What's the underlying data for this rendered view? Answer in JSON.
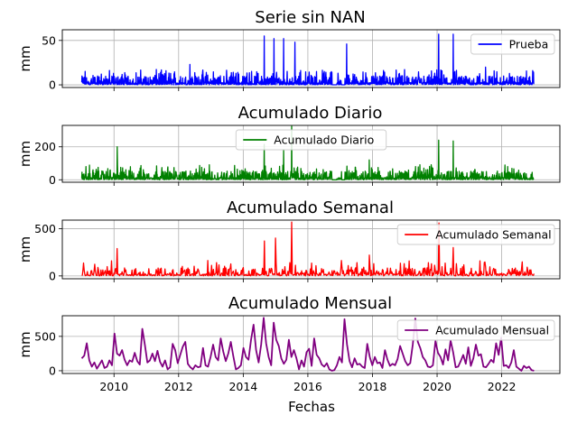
{
  "figure": {
    "x_axis_label": "Fechas",
    "x_ticks": [
      "2010",
      "2012",
      "2014",
      "2016",
      "2018",
      "2020",
      "2022"
    ],
    "x_range": [
      2008.4,
      2023.8
    ]
  },
  "chart_data": [
    {
      "type": "line",
      "title": "Serie sin NAN",
      "ylabel": "mm",
      "legend": "Prueba",
      "legend_position": "upper right",
      "color": "#0000ff",
      "grid": true,
      "ylim": [
        -3,
        62
      ],
      "yticks": [
        "0",
        "50"
      ],
      "ytick_values": [
        0,
        50
      ],
      "series_kind": "daily",
      "peaks": [
        {
          "x": 2014.65,
          "y": 55
        },
        {
          "x": 2014.95,
          "y": 52
        },
        {
          "x": 2015.25,
          "y": 52
        },
        {
          "x": 2015.6,
          "y": 48
        },
        {
          "x": 2017.2,
          "y": 46
        },
        {
          "x": 2020.05,
          "y": 57
        },
        {
          "x": 2020.5,
          "y": 57
        },
        {
          "x": 2012.35,
          "y": 23
        },
        {
          "x": 2021.5,
          "y": 20
        }
      ],
      "x_start": 2009.0,
      "x_end": 2023.0
    },
    {
      "type": "line",
      "title": "Acumulado Diario",
      "ylabel": "mm",
      "legend": "Acumulado Diario",
      "legend_position": "upper center",
      "color": "#008000",
      "grid": true,
      "ylim": [
        -15,
        330
      ],
      "yticks": [
        "0",
        "200"
      ],
      "ytick_values": [
        0,
        200
      ],
      "series_kind": "daily",
      "peaks": [
        {
          "x": 2010.1,
          "y": 200
        },
        {
          "x": 2014.65,
          "y": 215
        },
        {
          "x": 2015.5,
          "y": 325
        },
        {
          "x": 2015.25,
          "y": 180
        },
        {
          "x": 2020.05,
          "y": 240
        },
        {
          "x": 2020.5,
          "y": 235
        },
        {
          "x": 2017.9,
          "y": 120
        }
      ],
      "x_start": 2009.0,
      "x_end": 2023.0
    },
    {
      "type": "line",
      "title": "Acumulado Semanal",
      "ylabel": "mm",
      "legend": "Acumulado Semanal",
      "legend_position": "upper right",
      "color": "#ff0000",
      "grid": true,
      "ylim": [
        -30,
        590
      ],
      "yticks": [
        "0",
        "500"
      ],
      "ytick_values": [
        0,
        500
      ],
      "series_kind": "weekly",
      "peaks": [
        {
          "x": 2010.1,
          "y": 290
        },
        {
          "x": 2014.65,
          "y": 370
        },
        {
          "x": 2015.0,
          "y": 400
        },
        {
          "x": 2015.5,
          "y": 570
        },
        {
          "x": 2020.05,
          "y": 560
        },
        {
          "x": 2020.5,
          "y": 300
        },
        {
          "x": 2017.9,
          "y": 220
        }
      ],
      "x_start": 2009.0,
      "x_end": 2023.0
    },
    {
      "type": "line",
      "title": "Acumulado Mensual",
      "ylabel": "mm",
      "legend": "Acumulado Mensual",
      "legend_position": "upper right",
      "color": "#800080",
      "grid": true,
      "ylim": [
        -40,
        800
      ],
      "yticks": [
        "0",
        "500"
      ],
      "ytick_values": [
        0,
        500
      ],
      "series_kind": "monthly",
      "x_start": 2009.0,
      "x_end": 2023.0,
      "values": [
        180,
        220,
        400,
        150,
        60,
        120,
        30,
        90,
        150,
        40,
        60,
        150,
        80,
        540,
        250,
        220,
        300,
        160,
        80,
        150,
        130,
        260,
        140,
        90,
        610,
        380,
        120,
        150,
        250,
        140,
        290,
        130,
        60,
        150,
        20,
        50,
        390,
        300,
        110,
        230,
        350,
        420,
        100,
        50,
        20,
        80,
        50,
        60,
        330,
        80,
        60,
        200,
        380,
        200,
        150,
        470,
        280,
        140,
        250,
        420,
        210,
        20,
        40,
        80,
        330,
        200,
        160,
        450,
        670,
        300,
        120,
        380,
        770,
        400,
        200,
        80,
        700,
        450,
        360,
        180,
        100,
        160,
        450,
        200,
        300,
        180,
        20,
        150,
        60,
        270,
        320,
        70,
        470,
        230,
        180,
        90,
        60,
        110,
        20,
        0,
        10,
        80,
        200,
        120,
        750,
        380,
        140,
        50,
        180,
        90,
        100,
        60,
        40,
        390,
        200,
        80,
        200,
        110,
        120,
        40,
        300,
        160,
        70,
        100,
        80,
        170,
        360,
        250,
        140,
        80,
        110,
        380,
        760,
        420,
        330,
        200,
        150,
        60,
        50,
        80,
        430,
        260,
        200,
        90,
        310,
        150,
        440,
        270,
        50,
        60,
        140,
        230,
        100,
        340,
        70,
        180,
        380,
        220,
        240,
        60,
        50,
        100,
        160,
        120,
        400,
        230,
        480,
        70,
        80,
        40,
        120,
        300,
        60,
        30,
        0,
        70,
        40,
        60,
        10,
        0
      ]
    }
  ]
}
